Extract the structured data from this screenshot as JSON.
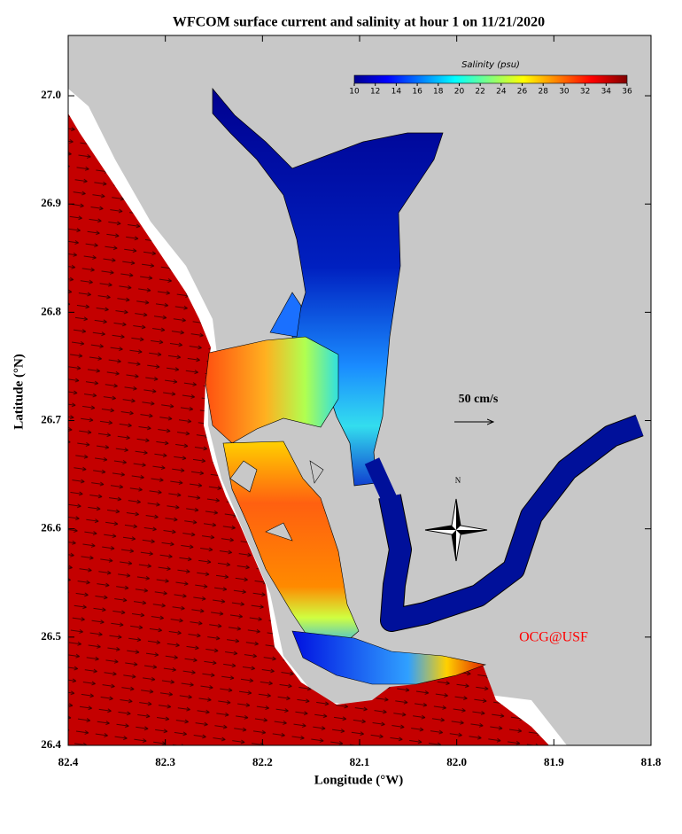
{
  "title": "WFCOM surface current and salinity at hour 1 on 11/21/2020",
  "map": {
    "xlabel": "Longitude (°W)",
    "ylabel": "Latitude (°N)",
    "xlim": [
      82.4,
      81.8
    ],
    "ylim": [
      26.4,
      27.0557
    ],
    "xticks": [
      82.4,
      82.3,
      82.2,
      82.1,
      {
        "value": 82,
        "label": "82.0"
      },
      81.9,
      81.8
    ],
    "yticks": [
      26.4,
      26.5,
      26.6,
      26.7,
      26.8,
      26.9,
      {
        "value": 27,
        "label": "27.0"
      }
    ]
  },
  "colorbar": {
    "label": "Salinity (psu)",
    "lim": [
      10,
      36
    ],
    "ticks": [
      10,
      12,
      14,
      16,
      18,
      20,
      22,
      24,
      26,
      28,
      30,
      32,
      34,
      36
    ]
  },
  "annotations": {
    "scale": "50 cm/s",
    "north": "N",
    "credit": "OCG@USF"
  }
}
